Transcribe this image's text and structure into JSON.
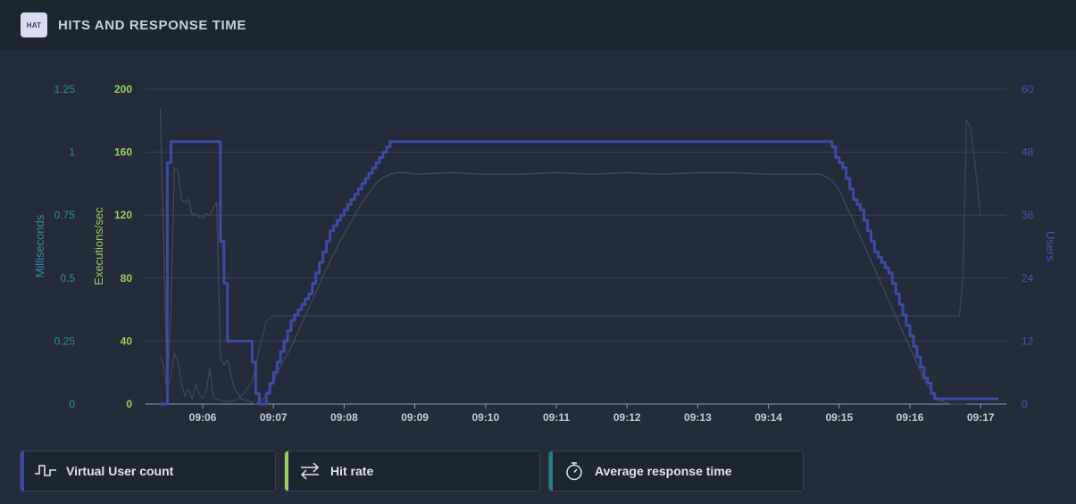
{
  "header": {
    "logo_text": "HAT",
    "title": "HITS AND RESPONSE TIME"
  },
  "legend": [
    {
      "label": "Virtual User count",
      "color": "#3d4aa6",
      "icon": "step-wave-icon"
    },
    {
      "label": "Hit rate",
      "color": "#9ccc65",
      "icon": "swap-arrows-icon"
    },
    {
      "label": "Average response time",
      "color": "#1f7f86",
      "icon": "stopwatch-icon"
    }
  ],
  "chart_data": {
    "type": "line",
    "x_ticks": [
      "09:06",
      "09:07",
      "09:08",
      "09:09",
      "09:10",
      "09:11",
      "09:12",
      "09:13",
      "09:14",
      "09:15",
      "09:16",
      "09:17"
    ],
    "axes": {
      "ms": {
        "label": "Milliseconds",
        "ticks": [
          "0",
          "0.25",
          "0.5",
          "0.75",
          "1",
          "1.25"
        ],
        "range": [
          0,
          1.25
        ],
        "color": "#2a8f98"
      },
      "exec": {
        "label": "Executions/sec",
        "ticks": [
          "0",
          "40",
          "80",
          "120",
          "160",
          "200"
        ],
        "range": [
          0,
          200
        ],
        "color": "#9ccc65"
      },
      "users": {
        "label": "Users",
        "ticks": [
          "0",
          "12",
          "24",
          "36",
          "48",
          "60"
        ],
        "range": [
          0,
          60
        ],
        "color": "#4452b8"
      }
    },
    "series": [
      {
        "name": "Virtual User count",
        "axis": "users",
        "color": "#3d4aa6",
        "x_min": [
          5.4,
          5.45,
          5.5,
          5.55,
          5.6,
          6.2,
          6.25,
          6.3,
          6.35,
          6.4,
          6.5,
          6.7,
          6.75,
          6.8,
          6.85,
          6.9,
          6.95,
          7.0,
          7.05,
          7.1,
          7.15,
          7.2,
          7.25,
          7.3,
          7.35,
          7.4,
          7.45,
          7.5,
          7.55,
          7.6,
          7.65,
          7.7,
          7.75,
          7.8,
          7.85,
          7.9,
          7.95,
          8.0,
          8.05,
          8.1,
          8.15,
          8.2,
          8.25,
          8.3,
          8.35,
          8.4,
          8.45,
          8.5,
          8.55,
          8.6,
          8.65,
          8.7,
          8.75,
          8.8,
          14.85,
          14.9,
          14.95,
          15.0,
          15.05,
          15.1,
          15.15,
          15.2,
          15.25,
          15.3,
          15.35,
          15.4,
          15.45,
          15.5,
          15.55,
          15.6,
          15.65,
          15.7,
          15.75,
          15.8,
          15.85,
          15.9,
          15.95,
          16.0,
          16.05,
          16.1,
          16.15,
          16.2,
          16.25,
          16.3,
          16.35,
          16.4,
          16.45,
          16.5,
          16.55,
          16.6,
          16.65,
          16.7,
          16.75,
          16.8,
          17.25
        ],
        "values": [
          0,
          0,
          46,
          50,
          50,
          50,
          31,
          23,
          12,
          12,
          12,
          8,
          2,
          0,
          0,
          2,
          4,
          6,
          8,
          10,
          12,
          14,
          16,
          17,
          18,
          19,
          20,
          21,
          23,
          25,
          27,
          29,
          31,
          33,
          34,
          35,
          36,
          37,
          38,
          39,
          40,
          41,
          42,
          43,
          44,
          45,
          46,
          47,
          48,
          49,
          50,
          50,
          50,
          50,
          50,
          49,
          47,
          46,
          45,
          43,
          41,
          39,
          38,
          37,
          35,
          33,
          31,
          29,
          28,
          27,
          26,
          25,
          23,
          21,
          19,
          17,
          15,
          13,
          11,
          9,
          7,
          5,
          4,
          2,
          1,
          1,
          1,
          1,
          1,
          1,
          1,
          1,
          1,
          1,
          1
        ]
      },
      {
        "name": "Hit rate",
        "axis": "exec",
        "color": "#3f4757",
        "x_min": [
          5.4,
          5.5,
          5.55,
          5.6,
          5.65,
          5.7,
          5.75,
          5.8,
          5.85,
          5.9,
          5.95,
          6.0,
          6.05,
          6.1,
          6.15,
          6.2,
          6.25,
          6.3,
          6.35,
          6.45,
          6.55,
          6.65,
          6.75,
          6.85,
          6.95,
          7.05,
          7.15,
          7.25,
          7.35,
          7.45,
          7.55,
          7.65,
          7.75,
          7.85,
          7.95,
          8.05,
          8.15,
          8.25,
          8.35,
          8.45,
          8.55,
          8.65,
          8.75,
          8.85,
          9.0,
          9.5,
          10.0,
          10.5,
          11.0,
          11.5,
          12.0,
          12.5,
          13.0,
          13.5,
          14.0,
          14.5,
          14.75,
          14.9,
          15.0,
          15.1,
          15.2,
          15.3,
          15.4,
          15.5,
          15.6,
          15.7,
          15.8,
          15.9,
          16.0,
          16.1,
          16.2,
          16.3,
          16.4,
          16.5,
          16.6,
          16.7,
          16.8
        ],
        "values": [
          188,
          10,
          60,
          150,
          148,
          130,
          128,
          130,
          120,
          121,
          119,
          118,
          121,
          120,
          125,
          128,
          30,
          25,
          28,
          10,
          3,
          2,
          0,
          3,
          10,
          20,
          28,
          36,
          46,
          56,
          66,
          76,
          86,
          95,
          104,
          112,
          120,
          128,
          134,
          140,
          144,
          146,
          147,
          147,
          146,
          147,
          146,
          146,
          147,
          146,
          147,
          146,
          147,
          147,
          146,
          146,
          146,
          142,
          136,
          126,
          116,
          106,
          96,
          86,
          76,
          66,
          56,
          46,
          36,
          26,
          16,
          8,
          3,
          1,
          0,
          0,
          0
        ]
      },
      {
        "name": "Average response time",
        "axis": "ms",
        "color": "#3a4353",
        "x_min": [
          5.4,
          5.45,
          5.5,
          5.55,
          5.6,
          5.65,
          5.7,
          5.75,
          5.8,
          5.85,
          5.9,
          5.95,
          6.0,
          6.05,
          6.1,
          6.15,
          6.2,
          6.3,
          6.4,
          6.5,
          6.6,
          6.7,
          6.8,
          6.9,
          7.0,
          7.2,
          8.0,
          9.0,
          10.0,
          11.0,
          12.0,
          13.0,
          14.0,
          15.0,
          16.0,
          16.7,
          16.75,
          16.8,
          16.85,
          16.9,
          17.0
        ],
        "values": [
          0.2,
          0.15,
          0.05,
          0.12,
          0.2,
          0.17,
          0.08,
          0.03,
          0.06,
          0.02,
          0.08,
          0.04,
          0.02,
          0.05,
          0.14,
          0.03,
          0.02,
          0.01,
          0.01,
          0.02,
          0.05,
          0.09,
          0.22,
          0.33,
          0.35,
          0.35,
          0.35,
          0.35,
          0.35,
          0.35,
          0.35,
          0.35,
          0.35,
          0.35,
          0.35,
          0.35,
          0.5,
          1.13,
          1.1,
          1.0,
          0.75
        ]
      }
    ]
  }
}
